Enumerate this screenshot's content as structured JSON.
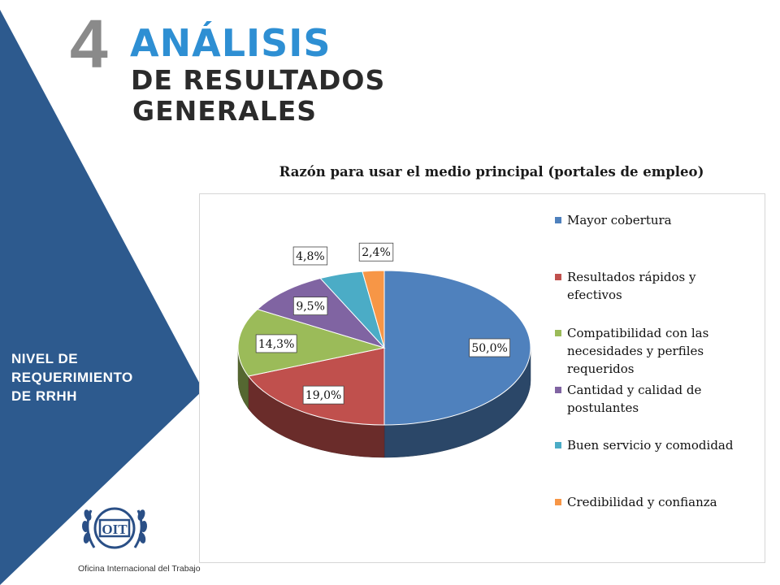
{
  "header": {
    "section_number": "4",
    "title": "ANÁLISIS",
    "subtitle_line1": "DE RESULTADOS",
    "subtitle_line2": "GENERALES"
  },
  "sidebar": {
    "label_line1": "NIVEL DE",
    "label_line2": "REQUERIMIENTO",
    "label_line3": "DE RRHH",
    "color": "#2d5a8e"
  },
  "logo": {
    "text": "OIT",
    "caption": "Oficina Internacional del Trabajo"
  },
  "chart_data": {
    "type": "pie",
    "title": "Razón para usar el medio principal (portales de empleo)",
    "slices": [
      {
        "label": "Mayor cobertura",
        "value": 50.0,
        "display": "50,0%",
        "color": "#4f81bd"
      },
      {
        "label": "Resultados rápidos y efectivos",
        "value": 19.0,
        "display": "19,0%",
        "color": "#c0504d"
      },
      {
        "label": "Compatibilidad con las necesidades y perfiles requeridos",
        "value": 14.3,
        "display": "14,3%",
        "color": "#9bbb59"
      },
      {
        "label": "Cantidad y calidad de postulantes",
        "value": 9.5,
        "display": "9,5%",
        "color": "#8064a2"
      },
      {
        "label": "Buen servicio y comodidad",
        "value": 4.8,
        "display": "4,8%",
        "color": "#4bacc6"
      },
      {
        "label": "Credibilidad y confianza",
        "value": 2.4,
        "display": "2,4%",
        "color": "#f79646"
      }
    ],
    "legend_position": "right",
    "three_d": true
  }
}
